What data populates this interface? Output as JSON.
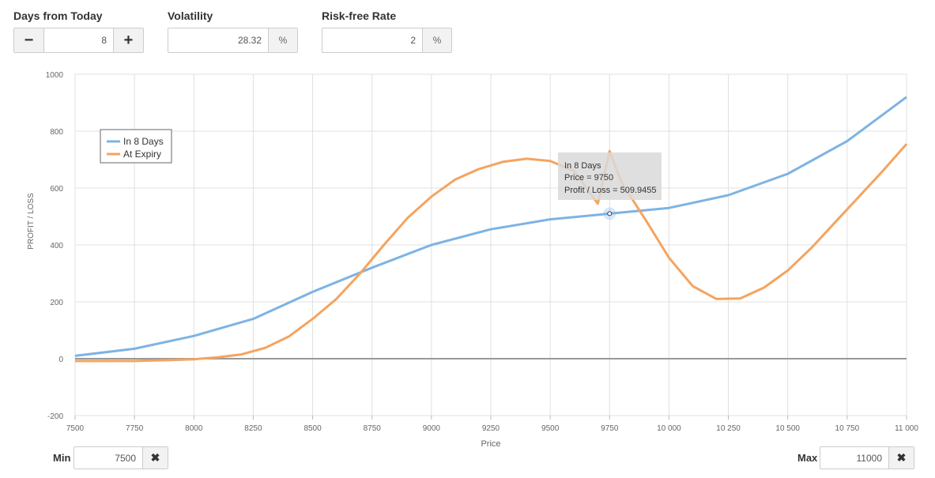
{
  "controls": {
    "days": {
      "label": "Days from Today",
      "value": "8",
      "minus": "−",
      "plus": "+"
    },
    "volatility": {
      "label": "Volatility",
      "value": "28.32",
      "unit": "%"
    },
    "rate": {
      "label": "Risk-free Rate",
      "value": "2",
      "unit": "%"
    }
  },
  "range": {
    "min": {
      "label": "Min",
      "value": "7500",
      "clear": "✖"
    },
    "max": {
      "label": "Max",
      "value": "11000",
      "clear": "✖"
    }
  },
  "tooltip": {
    "title": "In 8 Days",
    "price_line": "Price = 9750",
    "pl_line": "Profit / Loss = 509.9455",
    "x": 9750,
    "y": 509.9455
  },
  "colors": {
    "in_days": "#7eb3e3",
    "at_expiry": "#f4a460",
    "zero_line": "#999999",
    "grid": "#e0e0e0"
  },
  "chart_data": {
    "type": "line",
    "xlabel": "Price",
    "ylabel": "PROFIT / LOSS",
    "xlim": [
      7500,
      11000
    ],
    "ylim": [
      -200,
      1000
    ],
    "x_ticks": [
      7500,
      7750,
      8000,
      8250,
      8500,
      8750,
      9000,
      9250,
      9500,
      9750,
      10000,
      10250,
      10500,
      10750,
      11000
    ],
    "x_tick_labels": [
      "7500",
      "7750",
      "8000",
      "8250",
      "8500",
      "8750",
      "9000",
      "9250",
      "9500",
      "9750",
      "10 000",
      "10 250",
      "10 500",
      "10 750",
      "11 000"
    ],
    "y_ticks": [
      -200,
      0,
      200,
      400,
      600,
      800,
      1000
    ],
    "y_tick_labels": [
      "-200",
      "0",
      "200",
      "400",
      "600",
      "800",
      "1000"
    ],
    "grid": true,
    "legend_position": "top-left",
    "series": [
      {
        "name": "In 8 Days",
        "color": "#7eb3e3",
        "points": [
          [
            7500,
            10
          ],
          [
            7750,
            35
          ],
          [
            8000,
            80
          ],
          [
            8250,
            140
          ],
          [
            8500,
            235
          ],
          [
            8750,
            320
          ],
          [
            9000,
            400
          ],
          [
            9250,
            455
          ],
          [
            9500,
            490
          ],
          [
            9750,
            510
          ],
          [
            10000,
            530
          ],
          [
            10250,
            575
          ],
          [
            10500,
            650
          ],
          [
            10750,
            765
          ],
          [
            11000,
            920
          ]
        ]
      },
      {
        "name": "At Expiry",
        "color": "#f4a460",
        "points": [
          [
            7500,
            -8
          ],
          [
            7750,
            -8
          ],
          [
            7900,
            -5
          ],
          [
            8000,
            -2
          ],
          [
            8100,
            5
          ],
          [
            8200,
            15
          ],
          [
            8300,
            38
          ],
          [
            8400,
            78
          ],
          [
            8500,
            140
          ],
          [
            8600,
            210
          ],
          [
            8700,
            300
          ],
          [
            8800,
            400
          ],
          [
            8900,
            495
          ],
          [
            9000,
            570
          ],
          [
            9100,
            630
          ],
          [
            9200,
            667
          ],
          [
            9300,
            692
          ],
          [
            9400,
            703
          ],
          [
            9500,
            695
          ],
          [
            9600,
            660
          ],
          [
            9700,
            545
          ],
          [
            9750,
            730
          ],
          [
            9800,
            620
          ],
          [
            9900,
            490
          ],
          [
            10000,
            355
          ],
          [
            10100,
            255
          ],
          [
            10200,
            210
          ],
          [
            10300,
            212
          ],
          [
            10400,
            250
          ],
          [
            10500,
            310
          ],
          [
            10600,
            390
          ],
          [
            10700,
            480
          ],
          [
            10800,
            570
          ],
          [
            10900,
            660
          ],
          [
            11000,
            755
          ]
        ]
      }
    ]
  }
}
